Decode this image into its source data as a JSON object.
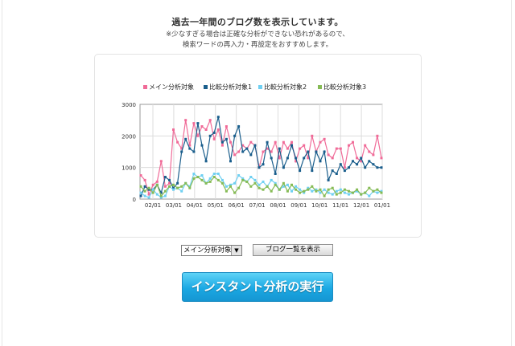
{
  "header": {
    "title": "過去一年間のブログ数を表示しています。",
    "note_line1": "※少なすぎる場合は正確な分析ができない恐れがあるので、",
    "note_line2": "検索ワードの再入力・再設定をおすすめします。"
  },
  "controls": {
    "select_value": "メイン分析対象",
    "list_button_label": "ブログ一覧を表示",
    "run_button_label": "インスタント分析の実行"
  },
  "colors": {
    "main": "#f06b98",
    "compare1": "#1a5e8c",
    "compare2": "#6fd0f2",
    "compare3": "#86bb55"
  },
  "chart_data": {
    "type": "line",
    "ylim": [
      0,
      3000
    ],
    "yticks": [
      "3000",
      "2000",
      "1000",
      "0"
    ],
    "xticks": [
      "02/01",
      "03/01",
      "04/01",
      "05/01",
      "06/01",
      "07/01",
      "08/01",
      "09/01",
      "10/01",
      "11/01",
      "12/01",
      "01/01"
    ],
    "legend_position": "top",
    "grid": true,
    "series": [
      {
        "name": "メイン分析対象",
        "color": "#f06b98",
        "values": [
          750,
          600,
          150,
          450,
          550,
          1200,
          400,
          500,
          2200,
          1800,
          1600,
          2500,
          1700,
          2400,
          2000,
          2300,
          2200,
          2500,
          1900,
          2200,
          1700,
          2300,
          1800,
          1400,
          1500,
          1700,
          1600,
          1800,
          1700,
          1000,
          1500,
          1600,
          1500,
          1800,
          1300,
          1800,
          1600,
          1800,
          1200,
          1600,
          1700,
          1300,
          2000,
          1500,
          1800,
          1900,
          1400,
          1300,
          1600,
          1600,
          1000,
          1700,
          1800,
          1300,
          1200,
          1700,
          1500,
          1400,
          2000,
          1300
        ]
      },
      {
        "name": "比較分析対象1",
        "color": "#1a5e8c",
        "values": [
          100,
          400,
          300,
          300,
          450,
          200,
          700,
          600,
          350,
          500,
          1500,
          1900,
          1600,
          1500,
          2400,
          1700,
          1200,
          2000,
          2100,
          2600,
          1800,
          1900,
          1200,
          2000,
          2300,
          1500,
          1600,
          1400,
          1700,
          1000,
          1100,
          1800,
          1300,
          800,
          1600,
          1000,
          1300,
          1700,
          1300,
          900,
          1300,
          1500,
          900,
          1500,
          1200,
          1500,
          600,
          900,
          800,
          1100,
          900,
          1000,
          1200,
          1100,
          1300,
          1000,
          1200,
          1100,
          1000,
          1000
        ]
      },
      {
        "name": "比較分析対象2",
        "color": "#6fd0f2",
        "values": [
          200,
          100,
          50,
          300,
          150,
          50,
          100,
          400,
          300,
          350,
          250,
          500,
          400,
          800,
          700,
          750,
          500,
          650,
          800,
          800,
          600,
          400,
          450,
          500,
          750,
          650,
          550,
          700,
          600,
          450,
          550,
          400,
          600,
          500,
          300,
          400,
          450,
          250,
          400,
          300,
          200,
          350,
          250,
          300,
          200,
          300,
          200,
          150,
          250,
          300,
          200,
          150,
          200,
          250,
          150,
          200,
          100,
          250,
          200,
          250
        ]
      },
      {
        "name": "比較分析対象3",
        "color": "#86bb55",
        "values": [
          400,
          250,
          350,
          200,
          450,
          100,
          250,
          400,
          450,
          350,
          400,
          500,
          350,
          650,
          700,
          600,
          500,
          550,
          700,
          600,
          500,
          250,
          400,
          200,
          350,
          600,
          550,
          400,
          500,
          350,
          300,
          400,
          250,
          450,
          300,
          500,
          250,
          450,
          300,
          200,
          250,
          300,
          400,
          250,
          300,
          100,
          300,
          350,
          150,
          200,
          300,
          250,
          200,
          300,
          150,
          200,
          350,
          250,
          300,
          200
        ]
      }
    ]
  }
}
